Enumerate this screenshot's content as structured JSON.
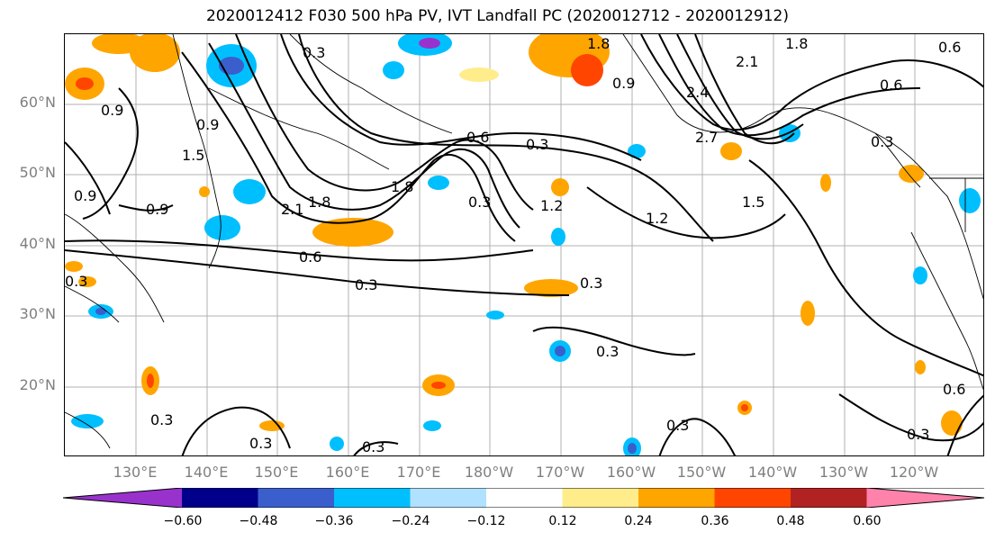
{
  "title": "2020012412 F030 500 hPa PV, IVT Landfall PC (2020012712 - 2020012912)",
  "lat_labels": [
    "60°N",
    "50°N",
    "40°N",
    "30°N",
    "20°N"
  ],
  "lon_labels": [
    "130°E",
    "140°E",
    "150°E",
    "160°E",
    "170°E",
    "180°W",
    "170°W",
    "160°W",
    "150°W",
    "140°W",
    "130°W",
    "120°W"
  ],
  "colorbar": {
    "ticks": [
      "−0.60",
      "−0.48",
      "−0.36",
      "−0.24",
      "−0.12",
      "0.12",
      "0.24",
      "0.36",
      "0.48",
      "0.60"
    ],
    "colors": [
      "#9932cc",
      "#00008b",
      "#3a5fcd",
      "#00bfff",
      "#b0e2ff",
      "#ffffff",
      "#ffec8b",
      "#ffa500",
      "#ff4500",
      "#b22222",
      "#ff82ab"
    ]
  },
  "contour_labels": [
    "0.3",
    "0.6",
    "0.9",
    "1.2",
    "1.5",
    "1.8",
    "2.1",
    "2.4",
    "2.7"
  ]
}
